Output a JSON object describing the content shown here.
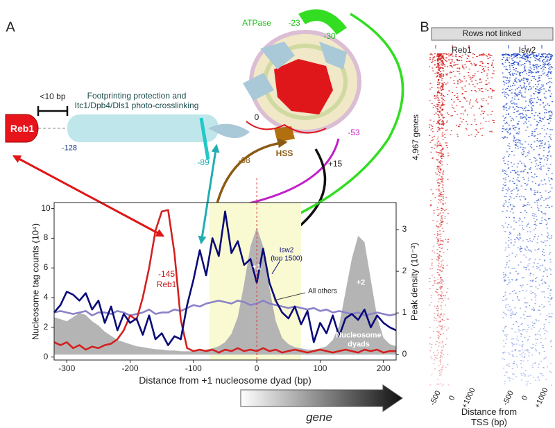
{
  "panel_a": {
    "label": "A",
    "reb1_box": "Reb1",
    "spacing": "<10 bp",
    "position_128": "-128",
    "footprint": "Footprinting protection and\nItc1/Dpb4/Dls1 photo-crosslinking",
    "atpase": "ATPase",
    "site_23": "-23",
    "site_30": "-30",
    "site_0": "0",
    "site_53": "-53",
    "site_89": "-89",
    "site_68": "-68",
    "hss": "HSS",
    "site_15": "+15",
    "gene": "gene"
  },
  "chart_data": {
    "type": "line",
    "xlabel": "Distance from +1 nucleosome dyad (bp)",
    "ylabel": "Nucleosome tag counts (10⁴)",
    "y2label": "Peak density (10⁻³)",
    "xlim": [
      -320,
      220
    ],
    "xticks": [
      -300,
      -200,
      -100,
      0,
      100,
      200
    ],
    "ylim": [
      -0.2,
      10.4
    ],
    "yticks": [
      0,
      2,
      4,
      6,
      8,
      10
    ],
    "y2lim": [
      -0.13,
      3.65
    ],
    "y2ticks": [
      0,
      1,
      2,
      3
    ],
    "shaded_region": [
      -75,
      70
    ],
    "annotations": {
      "reb1_position": "-145",
      "plus1": "+1",
      "plus2": "+2"
    },
    "x": [
      -320,
      -310,
      -300,
      -290,
      -280,
      -270,
      -260,
      -250,
      -240,
      -230,
      -220,
      -210,
      -200,
      -190,
      -180,
      -170,
      -160,
      -150,
      -140,
      -130,
      -120,
      -110,
      -100,
      -90,
      -80,
      -70,
      -60,
      -50,
      -40,
      -30,
      -20,
      -10,
      0,
      10,
      20,
      30,
      40,
      50,
      60,
      70,
      80,
      90,
      100,
      110,
      120,
      130,
      140,
      150,
      160,
      170,
      180,
      190,
      200,
      210,
      220
    ],
    "series": [
      {
        "name": "Nucleosome\ndyads",
        "type": "area",
        "axis": "y2",
        "color": "#b4b4b4",
        "values": [
          0.9,
          0.85,
          0.8,
          0.9,
          1.0,
          0.95,
          0.8,
          0.7,
          0.55,
          0.45,
          0.35,
          0.3,
          0.25,
          0.2,
          0.18,
          0.15,
          0.13,
          0.12,
          0.1,
          0.1,
          0.08,
          0.08,
          0.08,
          0.1,
          0.12,
          0.15,
          0.2,
          0.3,
          0.5,
          0.9,
          1.7,
          2.6,
          3.05,
          2.6,
          1.6,
          0.8,
          0.4,
          0.25,
          0.18,
          0.15,
          0.12,
          0.12,
          0.15,
          0.2,
          0.35,
          0.7,
          1.5,
          2.3,
          2.85,
          2.7,
          1.8,
          0.9,
          0.4,
          0.25,
          0.2
        ]
      },
      {
        "name": "All others",
        "color": "#8a82c8",
        "values": [
          3.0,
          3.1,
          3.0,
          2.9,
          3.0,
          3.1,
          2.8,
          3.0,
          3.0,
          2.9,
          3.1,
          3.0,
          2.8,
          2.9,
          3.0,
          3.2,
          2.9,
          3.0,
          3.0,
          3.2,
          3.1,
          3.3,
          3.5,
          3.4,
          3.6,
          3.7,
          3.8,
          3.7,
          3.6,
          3.8,
          3.7,
          3.5,
          3.6,
          3.8,
          3.6,
          3.5,
          3.4,
          3.3,
          3.4,
          3.3,
          3.2,
          3.3,
          3.1,
          3.2,
          3.0,
          3.1,
          3.0,
          2.9,
          3.0,
          2.8,
          2.9,
          3.0,
          2.9,
          2.8,
          2.9
        ]
      },
      {
        "name": "Reb1",
        "color": "#d42020",
        "values": [
          1.0,
          0.8,
          1.0,
          0.6,
          0.8,
          0.5,
          0.7,
          0.6,
          0.8,
          0.9,
          1.2,
          1.8,
          2.8,
          2.5,
          4.0,
          6.0,
          8.5,
          9.8,
          9.9,
          7.0,
          2.5,
          0.6,
          0.4,
          0.5,
          0.4,
          0.5,
          0.3,
          0.5,
          0.4,
          0.6,
          0.4,
          0.5,
          0.4,
          0.6,
          0.4,
          0.5,
          0.3,
          0.4,
          0.5,
          0.4,
          0.3,
          0.4,
          0.5,
          0.4,
          0.3,
          0.4,
          0.5,
          0.4,
          0.3,
          0.5,
          0.4,
          0.5,
          0.3,
          0.4,
          0.4
        ]
      },
      {
        "name": "Isw2\n(top 1500)",
        "color": "#0a0a78",
        "values": [
          3.0,
          3.5,
          4.4,
          4.2,
          3.8,
          4.3,
          3.2,
          3.8,
          2.3,
          3.4,
          1.8,
          2.9,
          2.3,
          2.6,
          1.5,
          2.8,
          1.2,
          1.6,
          0.8,
          1.4,
          1.2,
          3.5,
          5.2,
          7.2,
          5.5,
          8.0,
          6.8,
          9.8,
          7.0,
          7.8,
          6.2,
          6.6,
          5.0,
          7.3,
          5.0,
          3.8,
          3.0,
          2.6,
          3.4,
          2.2,
          3.1,
          1.0,
          2.3,
          1.6,
          2.8,
          1.4,
          2.6,
          2.9,
          2.5,
          3.2,
          2.0,
          2.8,
          2.3,
          2.0,
          1.8
        ]
      }
    ]
  },
  "panel_b": {
    "label": "B",
    "header": "Rows not linked",
    "ylabel": "4,967 genes",
    "xlabel": "Distance from TSS (bp)",
    "heatmaps": [
      {
        "name": "Reb1",
        "color": "#d42020",
        "xticks": [
          -500,
          0,
          {
            "value": 1000,
            "label": "+1000"
          }
        ]
      },
      {
        "name": "Isw2",
        "color": "#1e46c8",
        "xticks": [
          -500,
          0,
          {
            "value": 1000,
            "label": "+1000"
          }
        ]
      }
    ]
  }
}
